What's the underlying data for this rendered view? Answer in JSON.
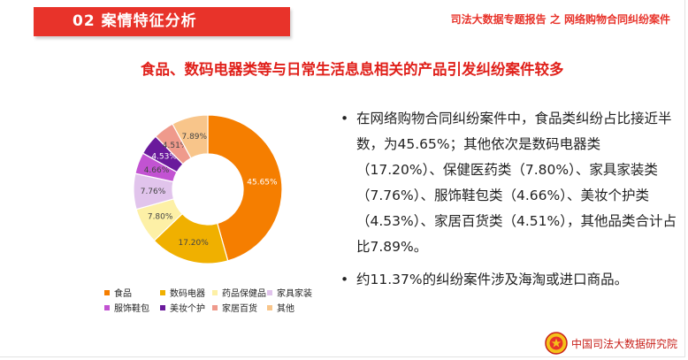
{
  "header": {
    "section_title": "02  案情特征分析",
    "report_title": "司法大数据专题报告 之 网络购物合同纠纷案件"
  },
  "headline": "食品、数码电器类等与日常生活息息相关的产品引发纠纷案件较多",
  "bullets": [
    "在网络购物合同纠纷案件中，食品类纠纷占比接近半数，为45.65%；其他依次是数码电器类（17.20%）、保健医药类（7.80%）、家具家装类（7.76%）、服饰鞋包类（4.66%）、美妆个护类（4.53%）、家居百货类（4.51%），其他品类合计占比7.89%。",
    "约11.37%的纠纷案件涉及海淘或进口商品。"
  ],
  "bullet_symbol": "•",
  "footer": {
    "org": "中国司法大数据研究院",
    "emblem_icon": "court-emblem-icon"
  },
  "chart_data": {
    "type": "pie",
    "style": "donut",
    "categories": [
      "食品",
      "数码电器",
      "药品保健品",
      "家具家装",
      "服饰鞋包",
      "美妆个护",
      "家居百货",
      "其他"
    ],
    "values": [
      45.65,
      17.2,
      7.8,
      7.76,
      4.66,
      4.53,
      4.51,
      7.89
    ],
    "labels": [
      "45.65%",
      "17.20%",
      "7.80%",
      "7.76%",
      "4.66%",
      "4.53%",
      "4.51%",
      "7.89%"
    ],
    "colors": [
      "#f57e00",
      "#f0b000",
      "#fdf0a6",
      "#e1c4ec",
      "#c253d2",
      "#6a1a9c",
      "#ef9a8c",
      "#f8c58a"
    ],
    "label_colors": [
      "#ffffff",
      "#444444",
      "#444444",
      "#444444",
      "#444444",
      "#ffffff",
      "#444444",
      "#444444"
    ],
    "start": "12 o'clock",
    "direction": "clockwise",
    "legend": "bottom"
  }
}
